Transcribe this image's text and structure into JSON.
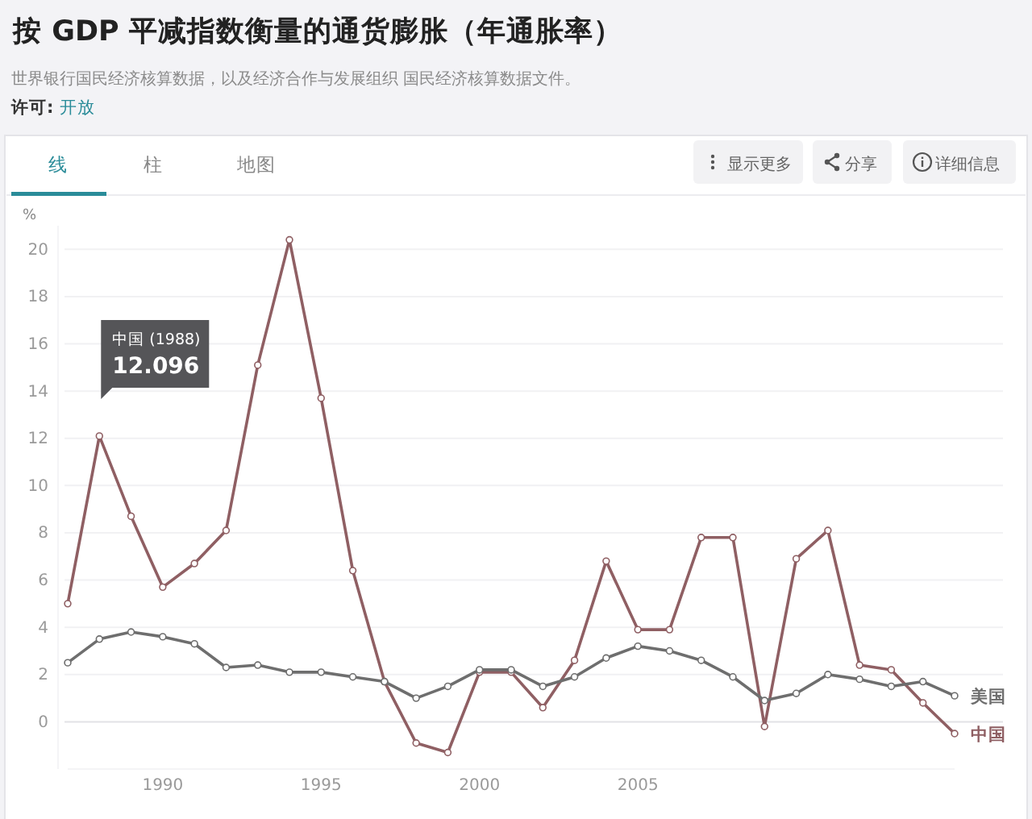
{
  "chart_data": {
    "type": "line",
    "title": "按 GDP 平减指数衡量的通货膨胀（年通胀率）",
    "ylabel": "%",
    "annotations": [
      "世界银行国民经济核算数据，以及经济合作与发展组织 国民经济核算数据文件。",
      "许可: 开放",
      "线",
      "柱",
      "地图",
      "显示更多",
      "分享",
      "详细信息",
      {
        "text": "中国 (1988)\n12.096",
        "x": 1988,
        "y": 12.096
      }
    ],
    "x": [
      1987,
      1988,
      1989,
      1990,
      1991,
      1992,
      1993,
      1994,
      1995,
      1996,
      1997,
      1998,
      1999,
      2000,
      2001,
      2002,
      2003,
      2004,
      2005,
      2006,
      2007,
      2008,
      2009,
      2010,
      2011,
      2012,
      2013,
      2014,
      2015
    ],
    "series": [
      {
        "name": "中国",
        "color": "#8f5f63",
        "values": [
          5.0,
          12.096,
          8.7,
          5.7,
          6.7,
          8.1,
          15.1,
          20.4,
          13.7,
          6.4,
          1.7,
          -0.9,
          -1.3,
          2.1,
          2.1,
          0.6,
          2.6,
          6.8,
          3.9,
          3.9,
          7.8,
          7.8,
          -0.2,
          6.9,
          8.1,
          2.4,
          2.2,
          0.8,
          -0.5
        ]
      },
      {
        "name": "美国",
        "color": "#6e6e6e",
        "values": [
          2.5,
          3.5,
          3.8,
          3.6,
          3.3,
          2.3,
          2.4,
          2.1,
          2.1,
          1.9,
          1.7,
          1.0,
          1.5,
          2.2,
          2.2,
          1.5,
          1.9,
          2.7,
          3.2,
          3.0,
          2.6,
          1.9,
          0.9,
          1.2,
          2.0,
          1.8,
          1.5,
          1.7,
          1.1
        ]
      }
    ],
    "xlim": [
      1987,
      2015
    ],
    "xticks": [
      1990,
      1995,
      2000,
      2005
    ],
    "ylim": [
      -2,
      21
    ],
    "yticks": [
      0,
      2,
      4,
      6,
      8,
      10,
      12,
      14,
      16,
      18,
      20
    ],
    "grid": "y",
    "marker": "circle",
    "line_style": "solid",
    "legend": "right"
  }
}
